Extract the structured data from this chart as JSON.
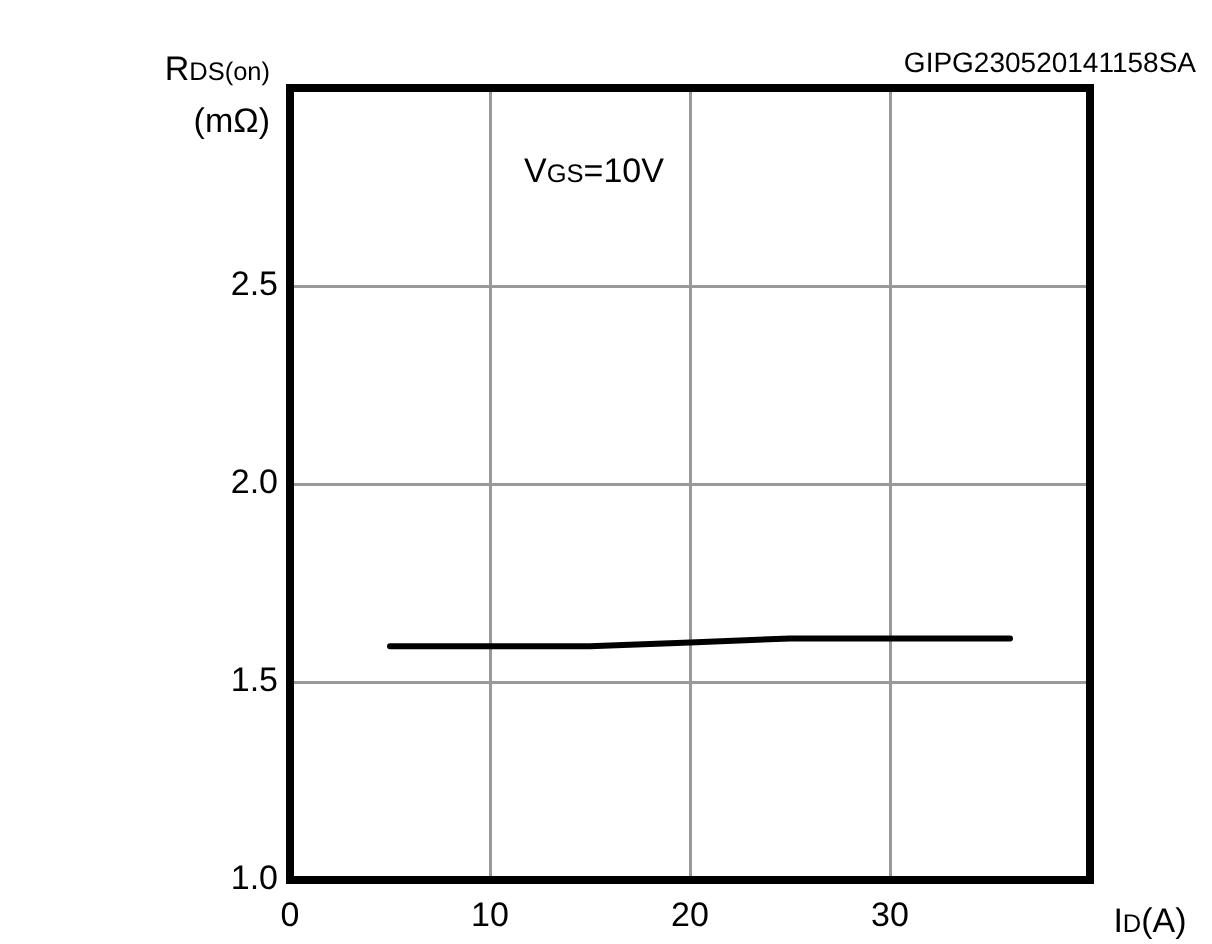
{
  "chart_data": {
    "type": "line",
    "xlabel": "I$_{D}$(A)",
    "ylabel": "R$_{DS(on)}$ (mΩ)",
    "annotations": [
      "GIPG230520141158SA",
      "V$_{GS}$=10V"
    ],
    "series": [
      {
        "color": "#000000",
        "x": [
          5,
          10,
          15,
          20,
          25,
          30,
          36
        ],
        "values": [
          1.59,
          1.59,
          1.59,
          1.6,
          1.61,
          1.61,
          1.61
        ]
      }
    ],
    "xlim": [
      0,
      40
    ],
    "xticks": [
      0,
      10,
      20,
      30,
      {
        "value": 40,
        "label": null
      }
    ],
    "ylim": [
      1,
      3
    ],
    "yticks": [
      {
        "value": 1,
        "label": "1.0"
      },
      1.5,
      {
        "value": 2,
        "label": "2.0"
      },
      2.5,
      {
        "value": 3,
        "label": null
      }
    ],
    "grid": true,
    "legend": false,
    "marker": "none",
    "line_style": "solid"
  }
}
